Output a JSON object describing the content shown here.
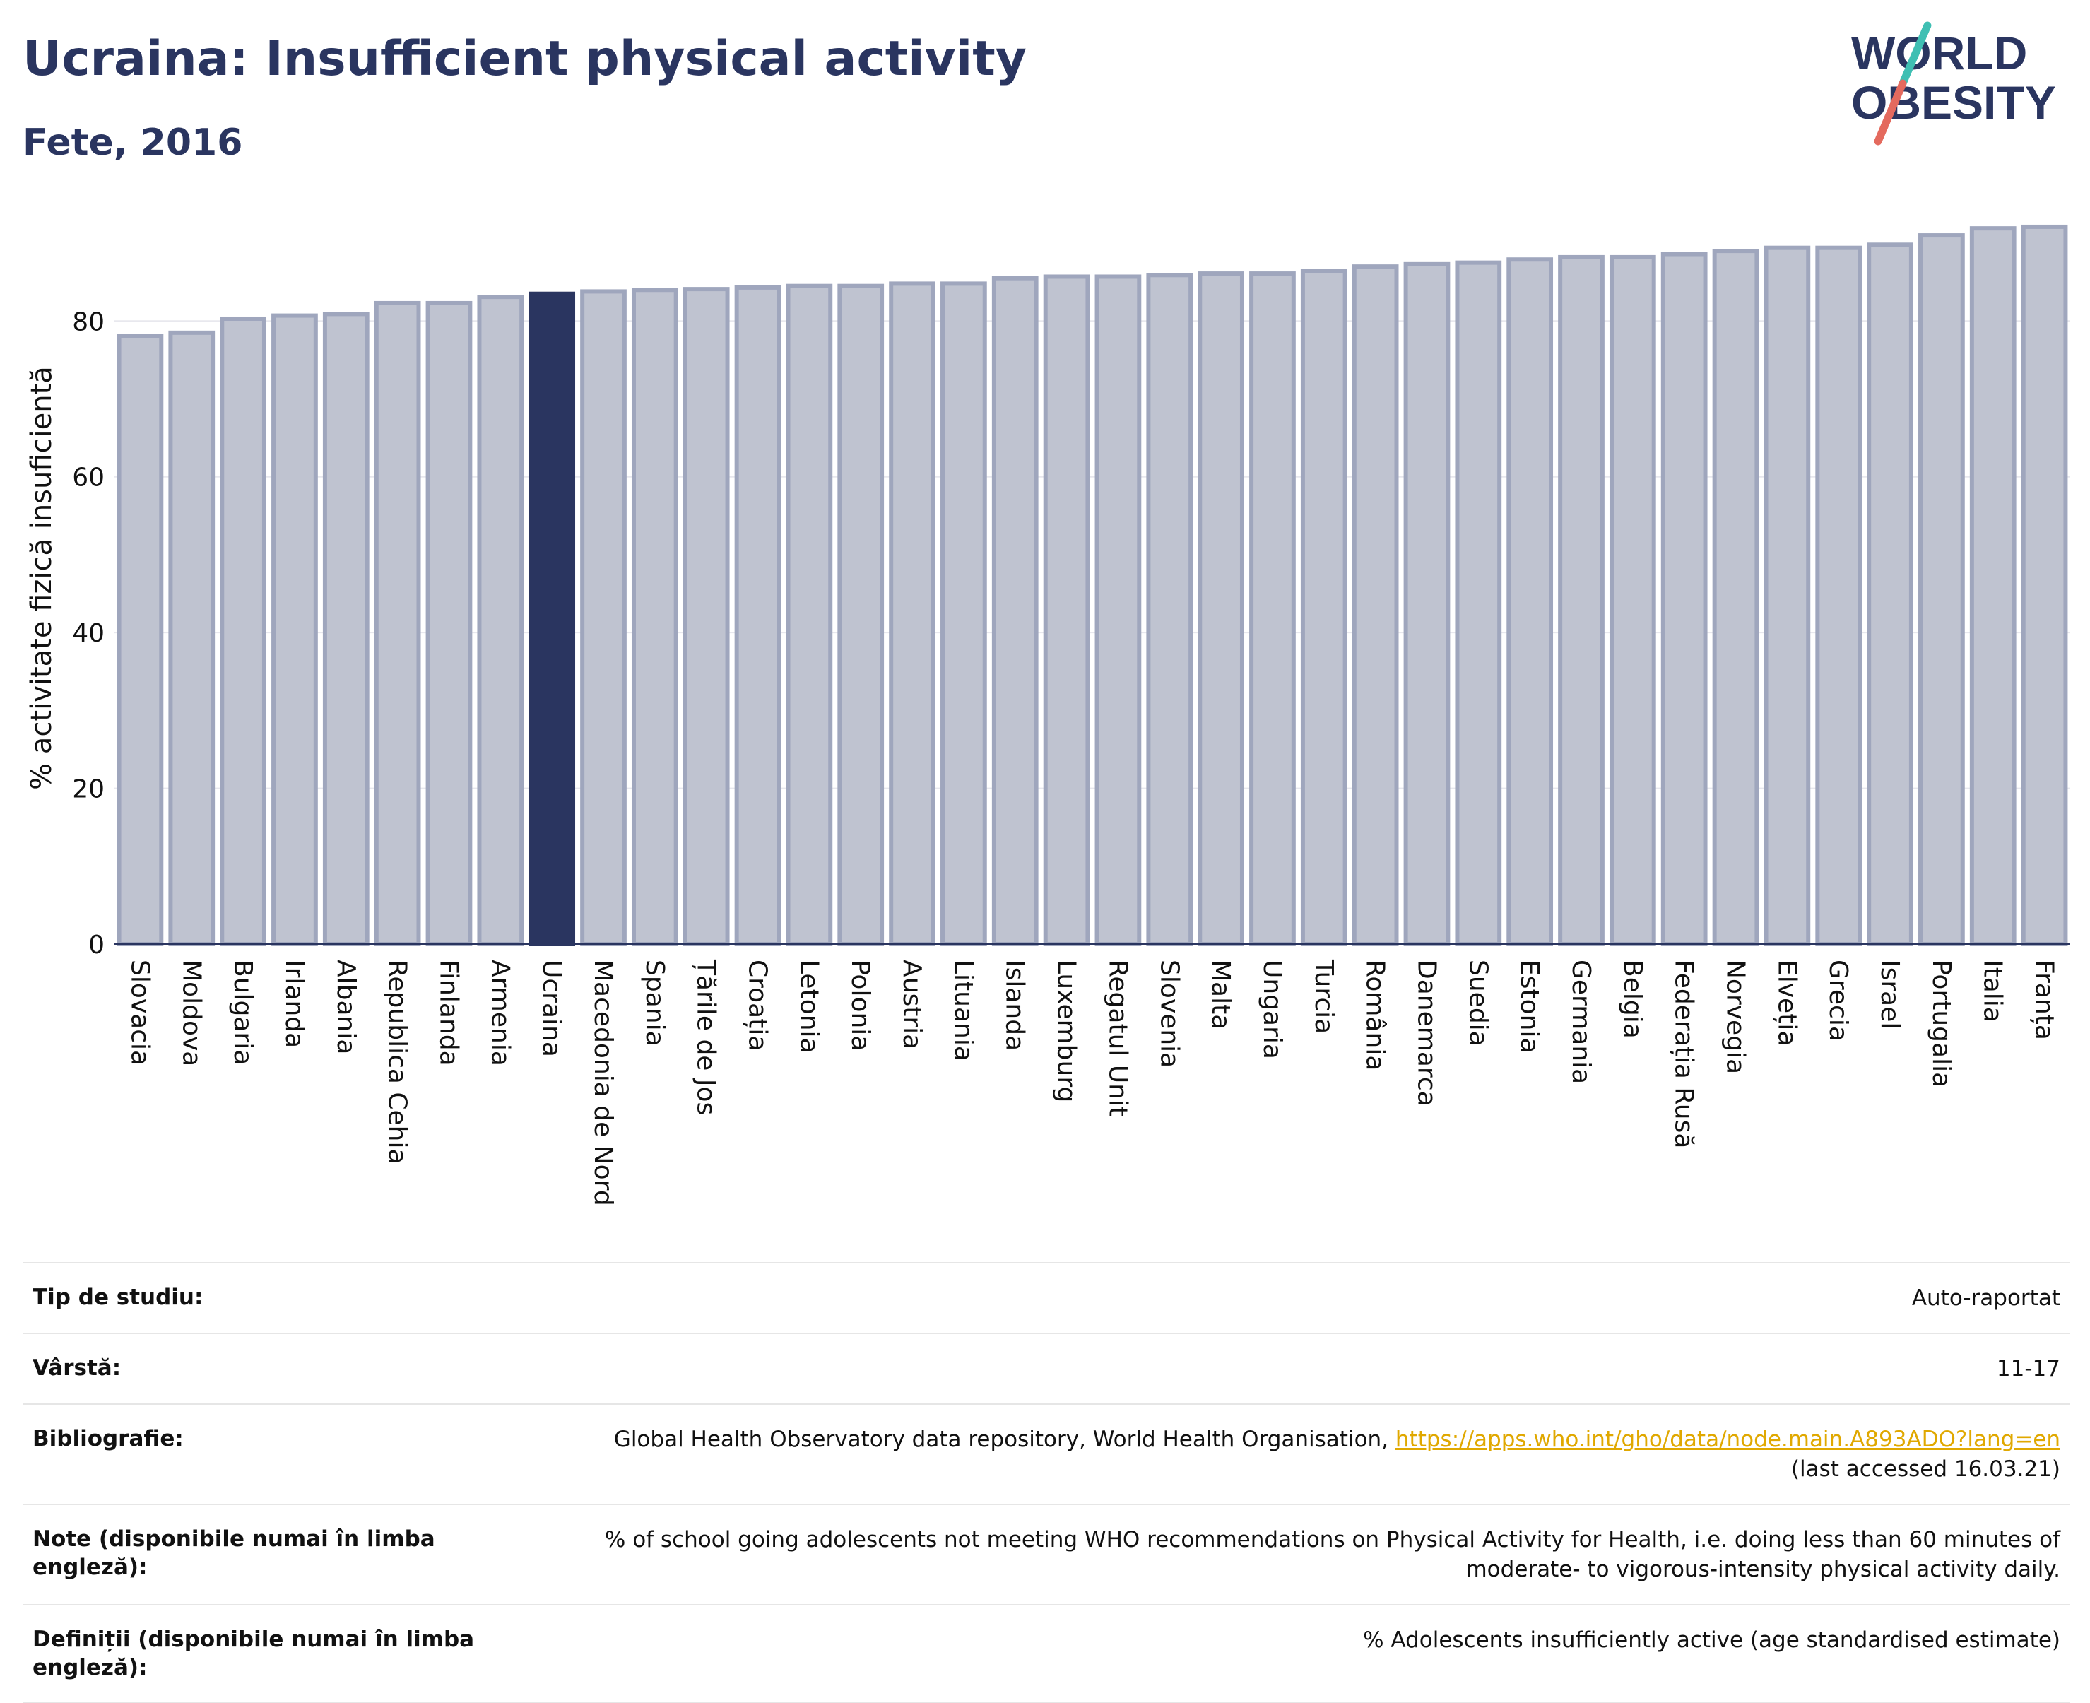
{
  "header": {
    "title": "Ucraina: Insufficient physical activity",
    "subtitle": "Fete, 2016"
  },
  "logo": {
    "line1": "WORLD",
    "line2": "OBESITY"
  },
  "colors": {
    "bar": "#bfc3d0",
    "bar_border": "#9fa6bd",
    "highlight": "#2a3560",
    "text": "#2a3560"
  },
  "chart_data": {
    "type": "bar",
    "ylabel": "% activitate fizică insuficientă",
    "ylim": [
      0,
      94
    ],
    "yticks": [
      0,
      20,
      40,
      60,
      80
    ],
    "grid": true,
    "highlight": "Ucraina",
    "categories": [
      "Slovacia",
      "Moldova",
      "Bulgaria",
      "Irlanda",
      "Albania",
      "Republica Cehia",
      "Finlanda",
      "Armenia",
      "Ucraina",
      "Macedonia de Nord",
      "Spania",
      "Țările de Jos",
      "Croația",
      "Letonia",
      "Polonia",
      "Austria",
      "Lituania",
      "Islanda",
      "Luxemburg",
      "Regatul Unit",
      "Slovenia",
      "Malta",
      "Ungaria",
      "Turcia",
      "România",
      "Danemarca",
      "Suedia",
      "Estonia",
      "Germania",
      "Belgia",
      "Federația Rusă",
      "Norvegia",
      "Elveția",
      "Grecia",
      "Israel",
      "Portugalia",
      "Italia",
      "Franța"
    ],
    "values": [
      78.1,
      78.5,
      80.3,
      80.7,
      80.9,
      82.3,
      82.3,
      83.1,
      83.5,
      83.8,
      84.0,
      84.1,
      84.3,
      84.5,
      84.5,
      84.8,
      84.8,
      85.5,
      85.7,
      85.7,
      85.9,
      86.1,
      86.1,
      86.4,
      87.0,
      87.3,
      87.5,
      87.9,
      88.2,
      88.2,
      88.6,
      89.0,
      89.4,
      89.4,
      89.8,
      91.0,
      91.9,
      92.1
    ]
  },
  "info": {
    "rows": [
      {
        "label": "Tip de studiu:",
        "value": "Auto-raportat"
      },
      {
        "label": "Vârstă:",
        "value": "11-17"
      },
      {
        "label": "Bibliografie:",
        "value": "Global Health Observatory data repository, World Health Organisation,",
        "link": "https://apps.who.int/gho/data/node.main.A893ADO?lang=en",
        "extra": "(last accessed 16.03.21)"
      },
      {
        "label": "Note (disponibile numai în limba engleză):",
        "value": "% of school going adolescents not meeting WHO recommendations on Physical Activity for Health, i.e. doing less than 60 minutes of moderate- to vigorous-intensity physical activity daily."
      },
      {
        "label": "Definiții (disponibile numai în limba engleză):",
        "value": "% Adolescents insufficiently active (age standardised estimate)"
      }
    ]
  }
}
